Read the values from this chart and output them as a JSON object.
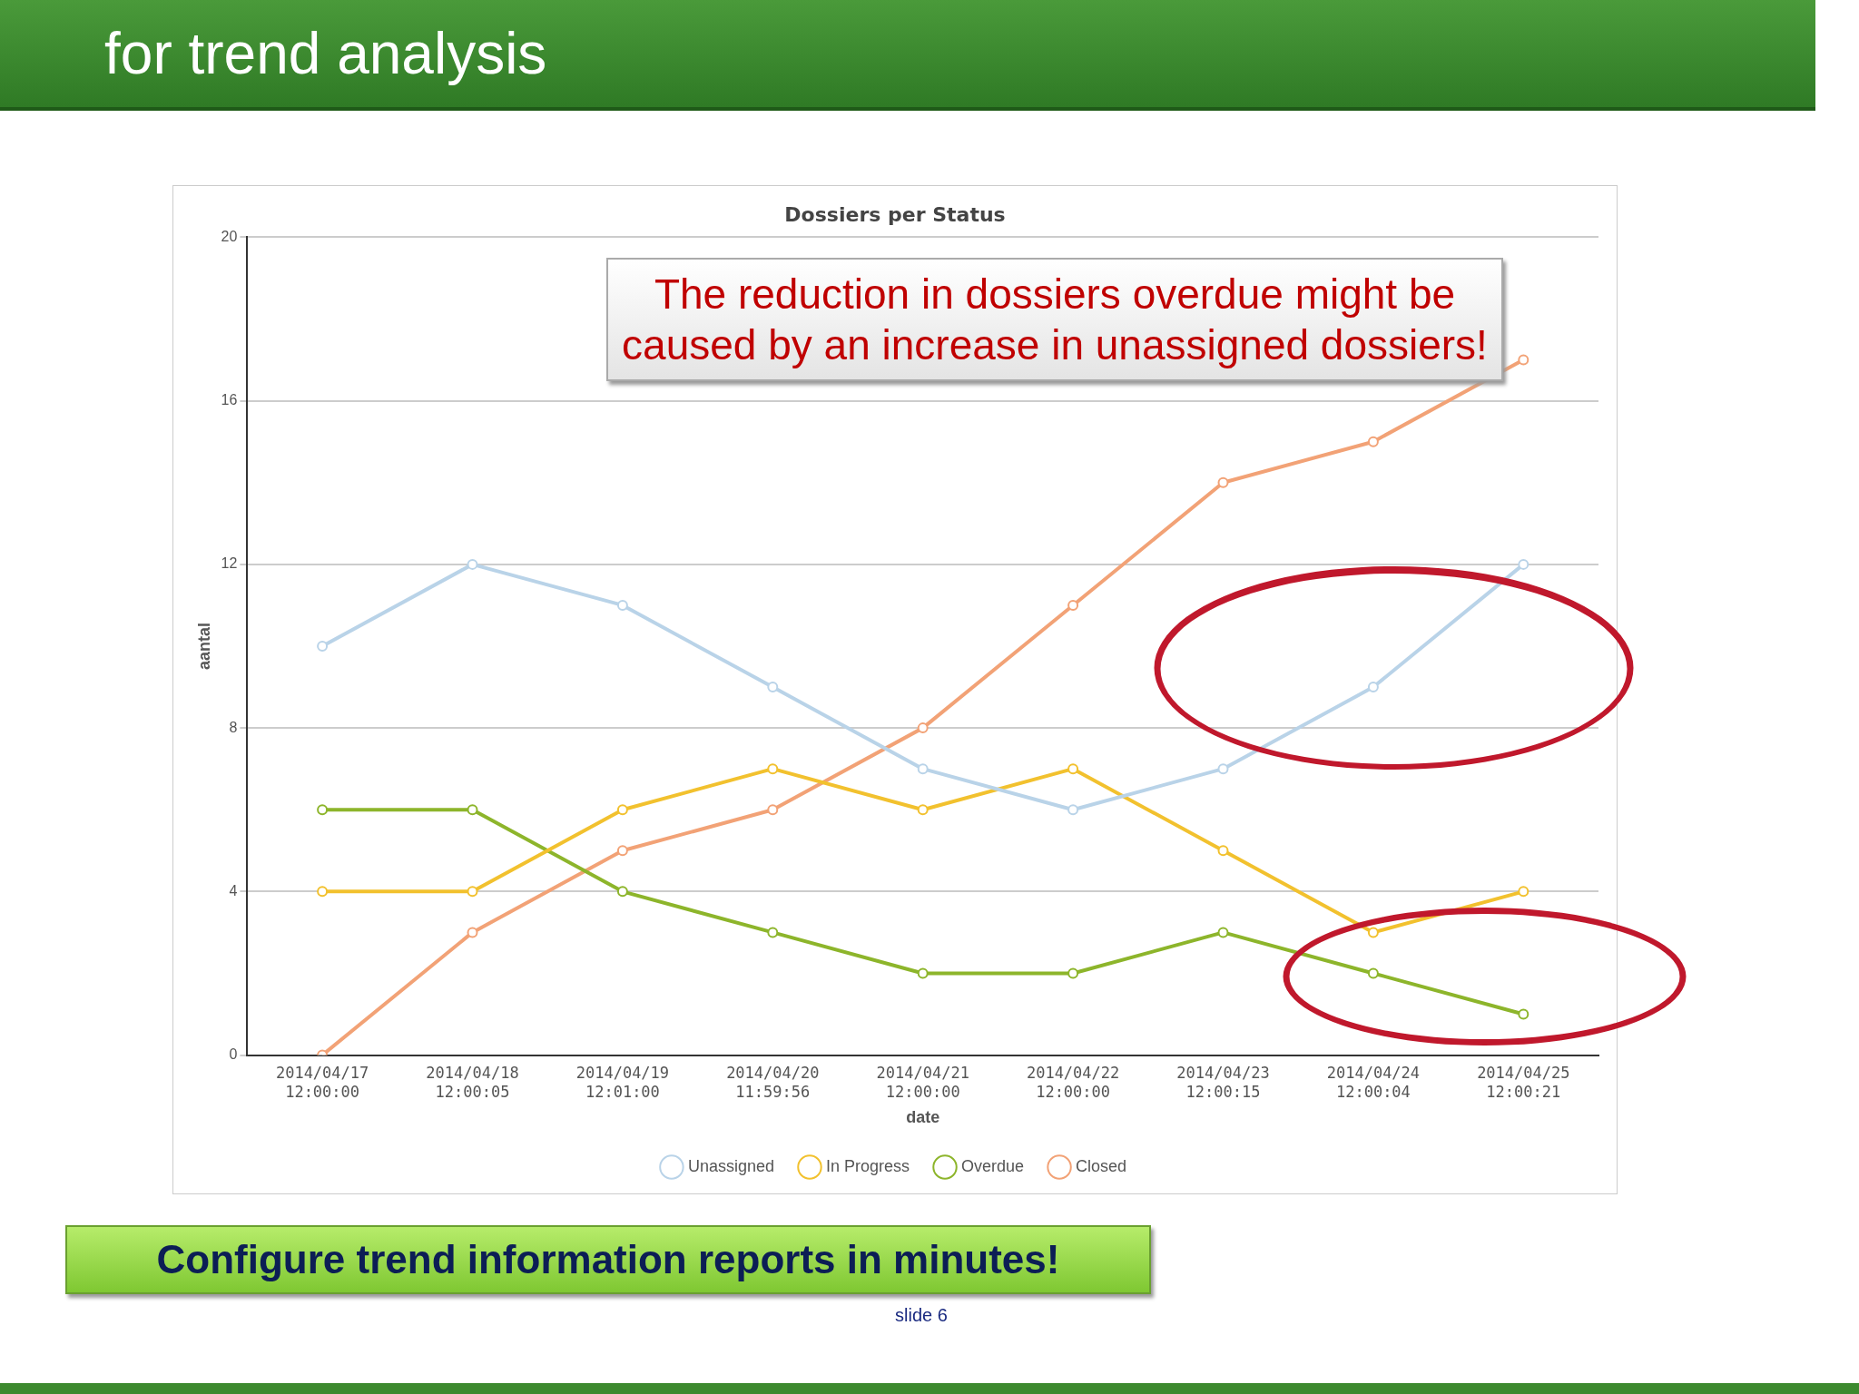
{
  "chart_data": {
    "type": "line",
    "title": "Dossiers per Status",
    "xlabel": "date",
    "ylabel": "aantal",
    "categories": [
      "2014/04/17 12:00:00",
      "2014/04/18 12:00:05",
      "2014/04/19 12:01:00",
      "2014/04/20 11:59:56",
      "2014/04/21 12:00:00",
      "2014/04/22 12:00:00",
      "2014/04/23 12:00:15",
      "2014/04/24 12:00:04",
      "2014/04/25 12:00:21"
    ],
    "series": [
      {
        "name": "Unassigned",
        "color": "#b9d3e8",
        "values": [
          10,
          12,
          11,
          9,
          7,
          6,
          7,
          9,
          12
        ]
      },
      {
        "name": "In Progress",
        "color": "#f2c12e",
        "values": [
          4,
          4,
          6,
          7,
          6,
          7,
          5,
          3,
          4
        ]
      },
      {
        "name": "Overdue",
        "color": "#8db52b",
        "values": [
          6,
          6,
          4,
          3,
          2,
          2,
          3,
          2,
          1
        ]
      },
      {
        "name": "Closed",
        "color": "#f2a276",
        "values": [
          0,
          3,
          5,
          6,
          8,
          11,
          14,
          15,
          17
        ]
      }
    ],
    "ylim": [
      0,
      20
    ],
    "yticks": [
      0,
      4,
      8,
      12,
      16,
      20
    ],
    "grid": "y",
    "legend": "bottom",
    "marker": "circle",
    "line_style": "solid",
    "annotations": [
      "for trend analysis",
      "The reduction in dossiers overdue might be caused by an increase in unassigned dossiers!",
      "Configure trend information reports in minutes!",
      "slide 6"
    ]
  }
}
